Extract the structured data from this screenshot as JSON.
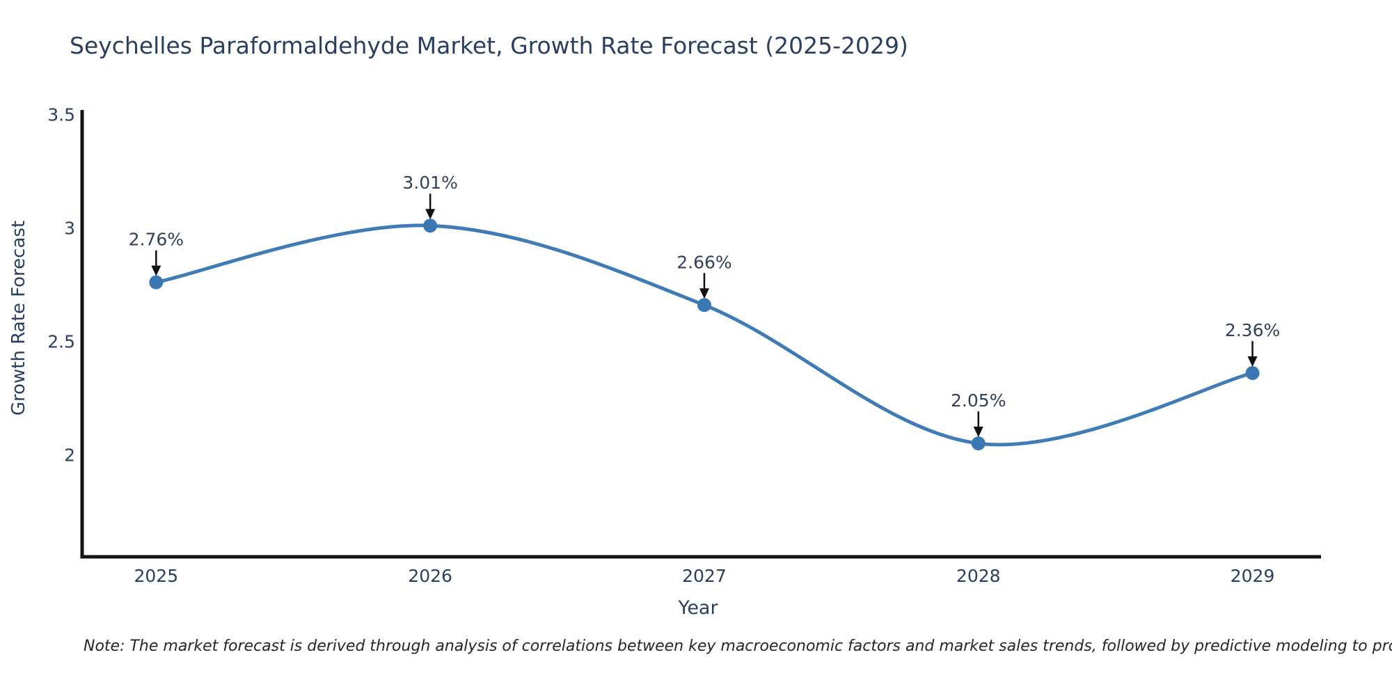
{
  "note": "Note: The market forecast is derived through analysis of correlations between key macroeconomic factors and market sales trends, followed by predictive modeling to project future sales",
  "chart_data": {
    "type": "line",
    "title": "Seychelles Paraformaldehyde Market, Growth Rate Forecast (2025-2029)",
    "xlabel": "Year",
    "ylabel": "Growth Rate Forecast",
    "x": [
      2025,
      2026,
      2027,
      2028,
      2029
    ],
    "xtick_labels": [
      "2025",
      "2026",
      "2027",
      "2028",
      "2029"
    ],
    "series": [
      {
        "name": "Growth Rate Forecast",
        "values": [
          2.76,
          3.01,
          2.66,
          2.05,
          2.36
        ]
      }
    ],
    "point_labels": [
      "2.76%",
      "3.01%",
      "2.66%",
      "2.05%",
      "2.36%"
    ],
    "yticks": [
      3.5,
      3,
      2.5,
      2
    ],
    "ytick_labels": [
      "3.5",
      "3",
      "2.5",
      "2"
    ],
    "ylim": [
      1.55,
      3.52
    ],
    "xlim": [
      2024.73,
      2029.25
    ],
    "line_shape": "spline",
    "grid": false,
    "legend_position": "none",
    "colors": {
      "line": "#3f7cb6",
      "marker": "#3a78b4",
      "axis": "#141414",
      "text": "#2a3f5f",
      "annotation_text": "#32405a",
      "arrow": "#111111",
      "note_text": "#262626",
      "background": "#ffffff"
    }
  }
}
